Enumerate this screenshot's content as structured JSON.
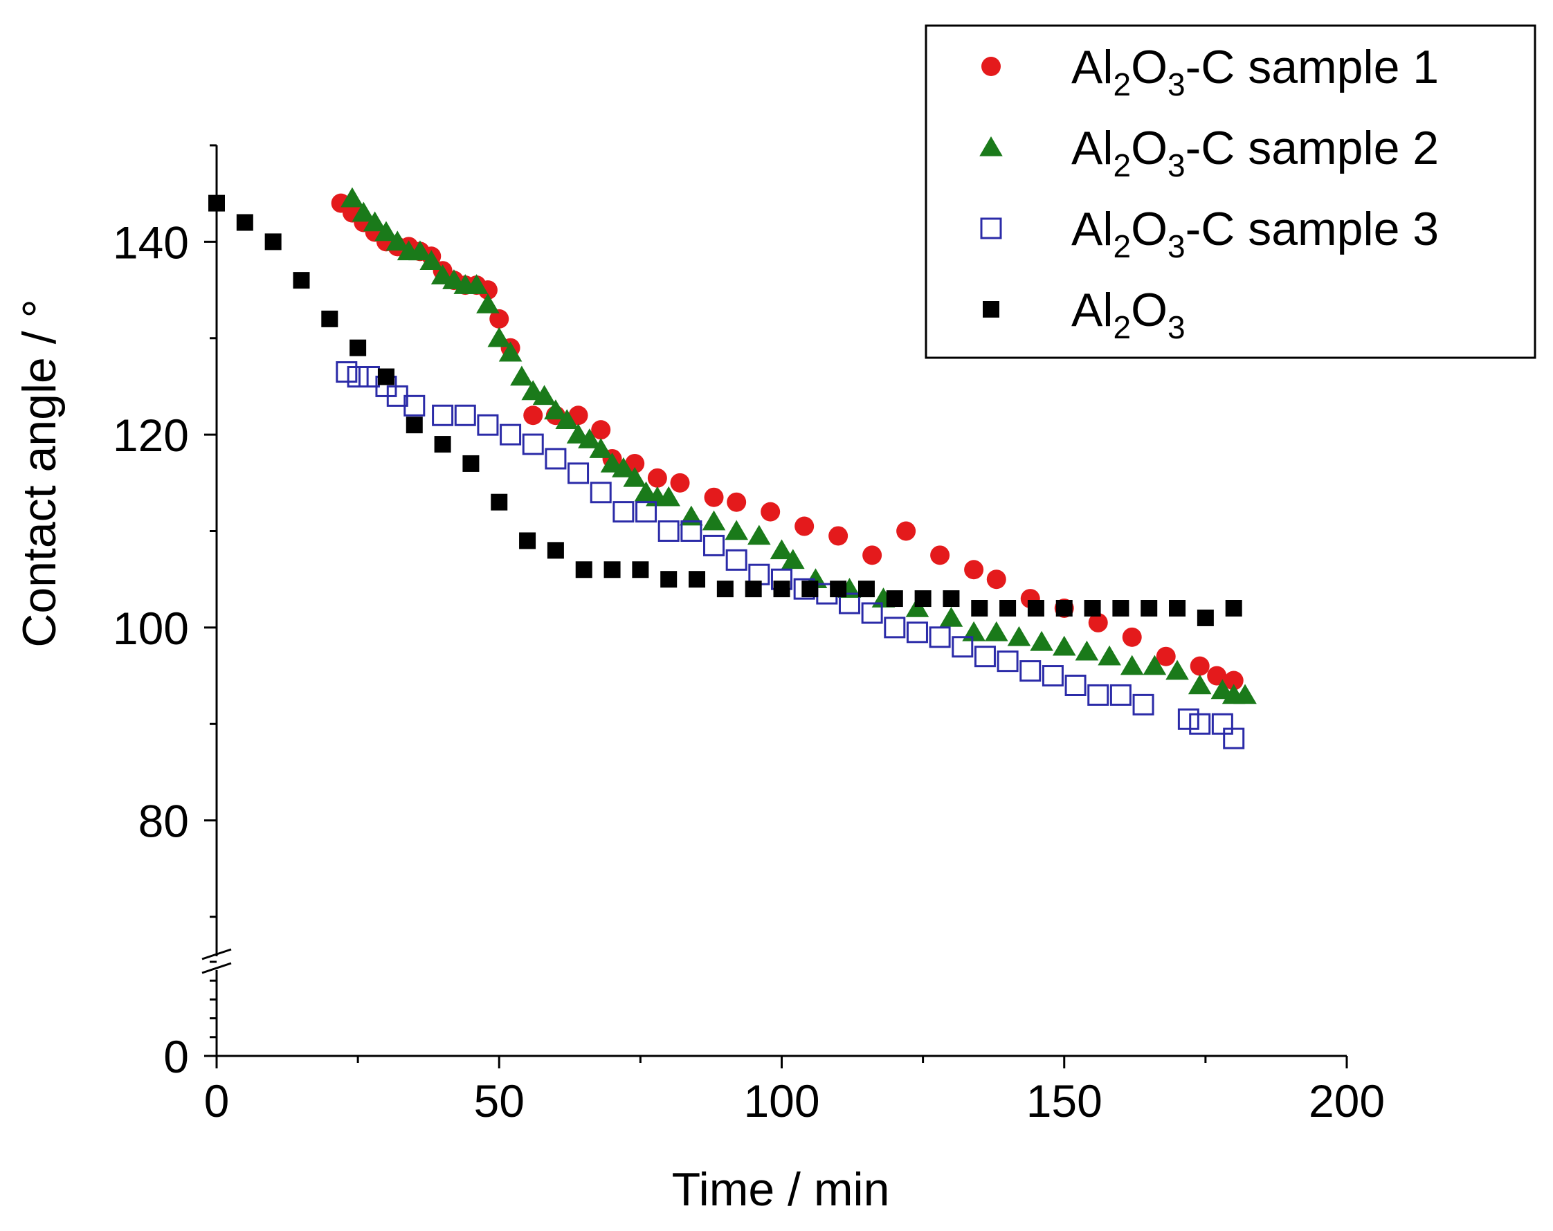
{
  "chart_data": {
    "type": "scatter",
    "title": "",
    "xlabel": "Time / min",
    "ylabel": "Contact angle / °",
    "xlim": [
      0,
      200
    ],
    "ylim_upper_segment": [
      70,
      150
    ],
    "ylim_lower_segment": [
      0,
      10
    ],
    "axis_break": "between 10 and 70 on y axis",
    "x_ticks": [
      0,
      50,
      100,
      150,
      200
    ],
    "y_ticks": [
      0,
      80,
      100,
      120,
      140
    ],
    "grid": false,
    "legend_position": "top-right",
    "series": [
      {
        "name": "Al2O3-C sample 1",
        "legend_parts": [
          "Al",
          "2",
          "O",
          "3",
          "-C sample 1"
        ],
        "marker": "filled-circle",
        "color": "#e41a1c",
        "x": [
          22,
          24,
          26,
          28,
          30,
          32,
          34,
          36,
          38,
          40,
          42,
          44,
          46,
          48,
          50,
          52,
          56,
          60,
          64,
          68,
          70,
          74,
          78,
          82,
          88,
          92,
          98,
          104,
          110,
          116,
          122,
          128,
          134,
          138,
          144,
          150,
          156,
          162,
          168,
          174,
          177,
          180
        ],
        "y": [
          144,
          143,
          142,
          141,
          140,
          139.5,
          139.5,
          139,
          138.5,
          137,
          136,
          135.5,
          135.5,
          135,
          132,
          129,
          122,
          122,
          122,
          120.5,
          117.5,
          117,
          115.5,
          115,
          113.5,
          113,
          112,
          110.5,
          109.5,
          107.5,
          110,
          107.5,
          106,
          105,
          103,
          102,
          100.5,
          99,
          97,
          96,
          95,
          94.5
        ]
      },
      {
        "name": "Al2O3-C sample 2",
        "legend_parts": [
          "Al",
          "2",
          "O",
          "3",
          "-C sample 2"
        ],
        "marker": "filled-triangle",
        "color": "#1a7a1a",
        "x": [
          24,
          26,
          28,
          30,
          32,
          34,
          36,
          38,
          40,
          42,
          44,
          46,
          48,
          50,
          52,
          54,
          56,
          58,
          60,
          62,
          64,
          66,
          68,
          70,
          72,
          74,
          76,
          78,
          80,
          84,
          88,
          92,
          96,
          100,
          102,
          106,
          112,
          118,
          124,
          130,
          134,
          138,
          142,
          146,
          150,
          154,
          158,
          162,
          166,
          170,
          174,
          178,
          180,
          182
        ],
        "y": [
          144.5,
          143,
          142,
          141,
          140,
          139,
          139,
          138,
          136.5,
          136,
          135.5,
          135.5,
          133.5,
          130,
          128.5,
          126,
          124.5,
          124,
          122.5,
          121.5,
          120,
          119.5,
          118.5,
          117,
          116.5,
          115.5,
          114,
          113.5,
          113.5,
          111.5,
          111,
          110,
          109.5,
          108,
          107,
          105,
          104,
          103,
          102,
          101,
          99.5,
          99.5,
          99,
          98.5,
          98,
          97.5,
          97,
          96,
          96,
          95.5,
          94,
          93.5,
          93,
          93
        ]
      },
      {
        "name": "Al2O3-C sample 3",
        "legend_parts": [
          "Al",
          "2",
          "O",
          "3",
          "-C sample 3"
        ],
        "marker": "open-square",
        "color": "#2b2ba8",
        "x": [
          23,
          25,
          27,
          30,
          32,
          35,
          40,
          44,
          48,
          52,
          56,
          60,
          64,
          68,
          72,
          76,
          80,
          84,
          88,
          92,
          96,
          100,
          104,
          108,
          112,
          116,
          120,
          124,
          128,
          132,
          136,
          140,
          144,
          148,
          152,
          156,
          160,
          164,
          172,
          174,
          178,
          180
        ],
        "y": [
          126.5,
          126,
          126,
          125,
          124,
          123,
          122,
          122,
          121,
          120,
          119,
          117.5,
          116,
          114,
          112,
          112,
          110,
          110,
          108.5,
          107,
          105.5,
          105,
          104,
          103.5,
          102.5,
          101.5,
          100,
          99.5,
          99,
          98,
          97,
          96.5,
          95.5,
          95,
          94,
          93,
          93,
          92,
          90.5,
          90,
          90,
          88.5
        ]
      },
      {
        "name": "Al2O3",
        "legend_parts": [
          "Al",
          "2",
          "O",
          "3",
          ""
        ],
        "marker": "filled-square",
        "color": "#000000",
        "x": [
          0,
          5,
          10,
          15,
          20,
          25,
          30,
          35,
          40,
          45,
          50,
          55,
          60,
          65,
          70,
          75,
          80,
          85,
          90,
          95,
          100,
          105,
          110,
          115,
          120,
          125,
          130,
          135,
          140,
          145,
          150,
          155,
          160,
          165,
          170,
          175,
          180
        ],
        "y": [
          144,
          142,
          140,
          136,
          132,
          129,
          126,
          121,
          119,
          117,
          113,
          109,
          108,
          106,
          106,
          106,
          105,
          105,
          104,
          104,
          104,
          104,
          104,
          104,
          103,
          103,
          103,
          102,
          102,
          102,
          102,
          102,
          102,
          102,
          102,
          101,
          102
        ]
      }
    ]
  }
}
